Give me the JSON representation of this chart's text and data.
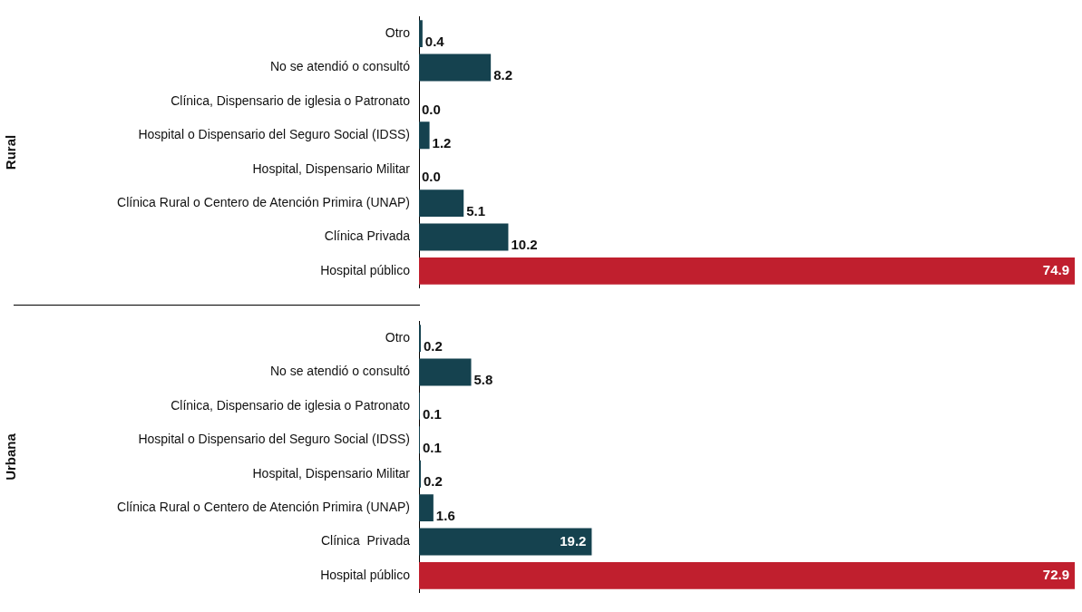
{
  "chart_data": [
    {
      "type": "bar",
      "orientation": "horizontal",
      "ylabel": "Rural",
      "categories": [
        "Otro",
        "No se atendió o consultó",
        "Clínica, Dispensario de iglesia o Patronato",
        "Hospital o Dispensario del Seguro Social (IDSS)",
        "Hospital, Dispensario Militar",
        "Clínica Rural o Centero de Atención Primira (UNAP)",
        "Clínica Privada",
        "Hospital público"
      ],
      "values": [
        0.4,
        8.2,
        0.0,
        1.2,
        0.0,
        5.1,
        10.2,
        74.9
      ],
      "value_labels": [
        "0.4",
        "8.2",
        "0.0",
        "1.2",
        "0.0",
        "5.1",
        "10.2",
        "74.9"
      ],
      "colors": [
        "#15424f",
        "#15424f",
        "#15424f",
        "#15424f",
        "#15424f",
        "#15424f",
        "#15424f",
        "#c01f2e"
      ]
    },
    {
      "type": "bar",
      "orientation": "horizontal",
      "ylabel": "Urbana",
      "categories": [
        "Otro",
        "No se atendió o consultó",
        "Clínica, Dispensario de iglesia o Patronato",
        "Hospital o Dispensario del Seguro Social (IDSS)",
        "Hospital, Dispensario Militar",
        "Clínica Rural o Centero de Atención Primira (UNAP)",
        "Clínica  Privada",
        "Hospital público"
      ],
      "values": [
        0.2,
        5.8,
        0.1,
        0.1,
        0.2,
        1.6,
        19.2,
        72.9
      ],
      "value_labels": [
        "0.2",
        "5.8",
        "0.1",
        "0.1",
        "0.2",
        "1.6",
        "19.2",
        "72.9"
      ],
      "colors": [
        "#15424f",
        "#15424f",
        "#15424f",
        "#15424f",
        "#15424f",
        "#15424f",
        "#15424f",
        "#c01f2e"
      ]
    }
  ]
}
